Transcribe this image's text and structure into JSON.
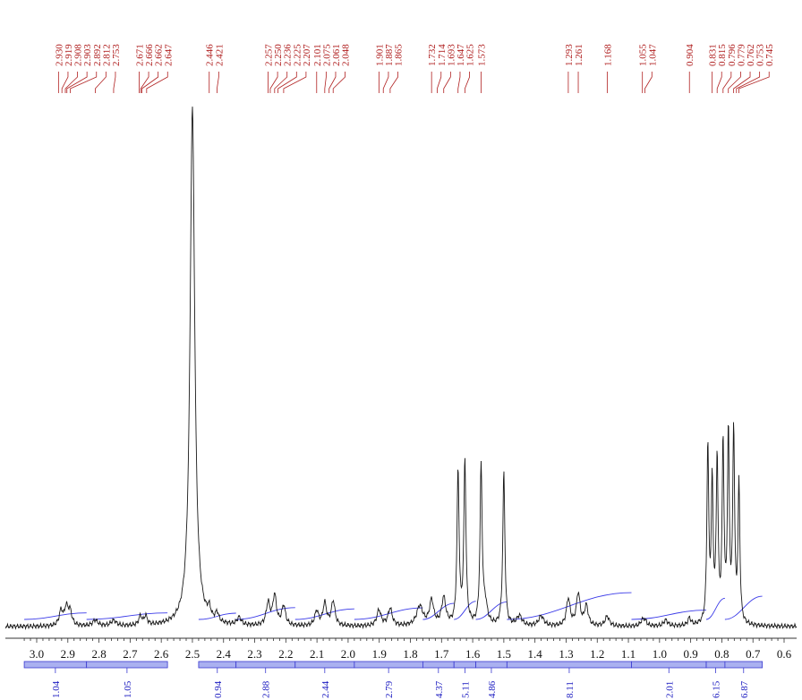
{
  "chart_data": {
    "type": "line",
    "title": "",
    "xlabel": "",
    "ylabel": "",
    "xlim": [
      3.05,
      0.58
    ],
    "x_reversed": true,
    "x_ticks": [
      "3.0",
      "2.9",
      "2.8",
      "2.7",
      "2.6",
      "2.5",
      "2.4",
      "2.3",
      "2.2",
      "2.1",
      "2.0",
      "1.9",
      "1.8",
      "1.7",
      "1.6",
      "1.5",
      "1.4",
      "1.3",
      "1.2",
      "1.1",
      "1.0",
      "0.9",
      "0.8",
      "0.7",
      "0.6"
    ],
    "peak_labels": [
      "2.930",
      "2.919",
      "2.908",
      "2.903",
      "2.892",
      "2.812",
      "2.753",
      "2.671",
      "2.666",
      "2.662",
      "2.647",
      "2.446",
      "2.421",
      "2.257",
      "2.250",
      "2.236",
      "2.225",
      "2.207",
      "2.101",
      "2.075",
      "2.061",
      "2.048",
      "1.901",
      "1.887",
      "1.865",
      "1.732",
      "1.714",
      "1.693",
      "1.647",
      "1.625",
      "1.573",
      "1.293",
      "1.261",
      "1.168",
      "1.055",
      "1.047",
      "0.904",
      "0.831",
      "0.815",
      "0.796",
      "0.779",
      "0.762",
      "0.753",
      "0.745"
    ],
    "peaks": [
      {
        "ppm": 2.5,
        "height": 1.05,
        "width": 0.009
      },
      {
        "ppm": 2.922,
        "height": 0.03,
        "width": 0.007
      },
      {
        "ppm": 2.905,
        "height": 0.035,
        "width": 0.007
      },
      {
        "ppm": 2.893,
        "height": 0.028,
        "width": 0.007
      },
      {
        "ppm": 2.812,
        "height": 0.012,
        "width": 0.01
      },
      {
        "ppm": 2.753,
        "height": 0.011,
        "width": 0.01
      },
      {
        "ppm": 2.667,
        "height": 0.018,
        "width": 0.006
      },
      {
        "ppm": 2.65,
        "height": 0.018,
        "width": 0.006
      },
      {
        "ppm": 2.446,
        "height": 0.02,
        "width": 0.006
      },
      {
        "ppm": 2.421,
        "height": 0.018,
        "width": 0.006
      },
      {
        "ppm": 2.35,
        "height": 0.015,
        "width": 0.008
      },
      {
        "ppm": 2.257,
        "height": 0.045,
        "width": 0.007
      },
      {
        "ppm": 2.236,
        "height": 0.06,
        "width": 0.007
      },
      {
        "ppm": 2.207,
        "height": 0.04,
        "width": 0.007
      },
      {
        "ppm": 2.101,
        "height": 0.03,
        "width": 0.007
      },
      {
        "ppm": 2.075,
        "height": 0.045,
        "width": 0.007
      },
      {
        "ppm": 2.048,
        "height": 0.05,
        "width": 0.007
      },
      {
        "ppm": 1.901,
        "height": 0.032,
        "width": 0.008
      },
      {
        "ppm": 1.865,
        "height": 0.035,
        "width": 0.008
      },
      {
        "ppm": 1.77,
        "height": 0.04,
        "width": 0.012
      },
      {
        "ppm": 1.732,
        "height": 0.05,
        "width": 0.008
      },
      {
        "ppm": 1.693,
        "height": 0.055,
        "width": 0.008
      },
      {
        "ppm": 1.647,
        "height": 0.31,
        "width": 0.004
      },
      {
        "ppm": 1.625,
        "height": 0.33,
        "width": 0.004
      },
      {
        "ppm": 1.573,
        "height": 0.32,
        "width": 0.004
      },
      {
        "ppm": 1.5,
        "height": 0.31,
        "width": 0.004
      },
      {
        "ppm": 1.56,
        "height": 0.04,
        "width": 0.008
      },
      {
        "ppm": 1.45,
        "height": 0.02,
        "width": 0.01
      },
      {
        "ppm": 1.38,
        "height": 0.02,
        "width": 0.01
      },
      {
        "ppm": 1.293,
        "height": 0.055,
        "width": 0.007
      },
      {
        "ppm": 1.261,
        "height": 0.065,
        "width": 0.007
      },
      {
        "ppm": 1.235,
        "height": 0.04,
        "width": 0.007
      },
      {
        "ppm": 1.168,
        "height": 0.02,
        "width": 0.008
      },
      {
        "ppm": 1.055,
        "height": 0.01,
        "width": 0.007
      },
      {
        "ppm": 1.047,
        "height": 0.01,
        "width": 0.007
      },
      {
        "ppm": 0.98,
        "height": 0.012,
        "width": 0.008
      },
      {
        "ppm": 0.904,
        "height": 0.015,
        "width": 0.006
      },
      {
        "ppm": 0.845,
        "height": 0.36,
        "width": 0.0035
      },
      {
        "ppm": 0.831,
        "height": 0.28,
        "width": 0.0035
      },
      {
        "ppm": 0.815,
        "height": 0.33,
        "width": 0.0035
      },
      {
        "ppm": 0.796,
        "height": 0.36,
        "width": 0.0035
      },
      {
        "ppm": 0.779,
        "height": 0.38,
        "width": 0.0035
      },
      {
        "ppm": 0.762,
        "height": 0.39,
        "width": 0.0035
      },
      {
        "ppm": 0.745,
        "height": 0.28,
        "width": 0.0035
      }
    ],
    "integral_regions": [
      {
        "from": 3.04,
        "to": 2.84,
        "value": "1.04"
      },
      {
        "from": 2.84,
        "to": 2.58,
        "value": "1.05"
      },
      {
        "from": 2.48,
        "to": 2.36,
        "value": "0.94"
      },
      {
        "from": 2.36,
        "to": 2.17,
        "value": "2.88"
      },
      {
        "from": 2.17,
        "to": 1.98,
        "value": "2.44"
      },
      {
        "from": 1.98,
        "to": 1.76,
        "value": "2.79"
      },
      {
        "from": 1.76,
        "to": 1.66,
        "value": "4.37"
      },
      {
        "from": 1.66,
        "to": 1.59,
        "value": "5.11"
      },
      {
        "from": 1.59,
        "to": 1.49,
        "value": "4.86"
      },
      {
        "from": 1.49,
        "to": 1.09,
        "value": "8.11"
      },
      {
        "from": 1.09,
        "to": 0.85,
        "value": "2.01"
      },
      {
        "from": 0.85,
        "to": 0.79,
        "value": "6.15"
      },
      {
        "from": 0.79,
        "to": 0.67,
        "value": "6.87"
      }
    ],
    "colors": {
      "spectrum": "#1a1a1a",
      "peak_label": "#b02020",
      "integral_curve": "#3a3ae8",
      "integral_bar": "#aab0f0",
      "integral_bar_edge": "#3a3ad0",
      "integral_value": "#1a1ac0",
      "axis": "#333333"
    }
  }
}
